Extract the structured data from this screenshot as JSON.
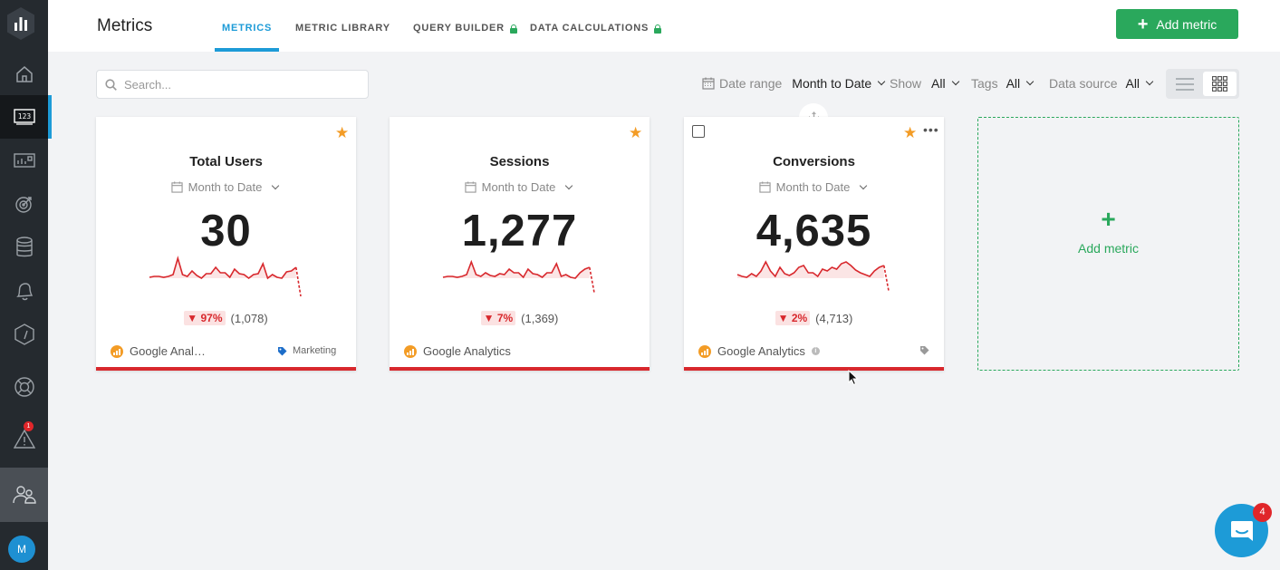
{
  "header": {
    "title": "Metrics",
    "tabs": [
      {
        "label": "METRICS",
        "active": true,
        "locked": false
      },
      {
        "label": "METRIC LIBRARY",
        "active": false,
        "locked": false
      },
      {
        "label": "QUERY BUILDER",
        "active": false,
        "locked": true
      },
      {
        "label": "DATA CALCULATIONS",
        "active": false,
        "locked": true
      }
    ],
    "add_metric_label": "Add metric"
  },
  "toolbar": {
    "search_placeholder": "Search...",
    "date_range_label": "Date range",
    "date_range_value": "Month to Date",
    "show_label": "Show",
    "show_value": "All",
    "tags_label": "Tags",
    "tags_value": "All",
    "data_source_label": "Data source",
    "data_source_value": "All",
    "view_mode": "grid"
  },
  "sidebar": {
    "items": [
      "home",
      "metrics",
      "dashboards",
      "goals",
      "data-sources",
      "alerts",
      "performance",
      "support",
      "notifications",
      "users"
    ],
    "active": "metrics",
    "notification_count": "1",
    "avatar_initial": "M"
  },
  "cards": [
    {
      "title": "Total Users",
      "date_range": "Month to Date",
      "value": "30",
      "change": "▼ 97%",
      "previous": "(1,078)",
      "source": "Google Anal…",
      "tag": "Marketing",
      "starred": true,
      "spark": [
        9,
        10,
        10,
        9,
        10,
        12,
        30,
        12,
        10,
        16,
        11,
        8,
        13,
        13,
        20,
        14,
        14,
        9,
        18,
        13,
        12,
        8,
        12,
        13,
        24,
        8,
        12,
        9,
        8,
        15,
        16,
        20,
        -12
      ]
    },
    {
      "title": "Sessions",
      "date_range": "Month to Date",
      "value": "1,277",
      "change": "▼ 7%",
      "previous": "(1,369)",
      "source": "Google Analytics",
      "tag": "",
      "starred": true,
      "spark": [
        9,
        10,
        10,
        9,
        10,
        12,
        26,
        12,
        10,
        14,
        11,
        10,
        13,
        12,
        18,
        14,
        14,
        9,
        18,
        13,
        12,
        9,
        14,
        14,
        24,
        10,
        12,
        9,
        8,
        14,
        18,
        20,
        -8
      ]
    },
    {
      "title": "Conversions",
      "date_range": "Month to Date",
      "value": "4,635",
      "change": "▼ 2%",
      "previous": "(4,713)",
      "source": "Google Analytics",
      "tag": "",
      "starred": true,
      "spark": [
        12,
        10,
        9,
        13,
        10,
        16,
        26,
        16,
        10,
        20,
        13,
        11,
        14,
        20,
        22,
        14,
        14,
        10,
        18,
        16,
        20,
        18,
        24,
        26,
        22,
        17,
        14,
        12,
        10,
        16,
        20,
        22,
        -6
      ]
    }
  ],
  "add_card_label": "Add metric",
  "chat": {
    "badge": "4"
  },
  "colors": {
    "accent": "#1d9bd7",
    "green": "#2aa85c",
    "red": "#d8282d",
    "star": "#f39c26"
  }
}
